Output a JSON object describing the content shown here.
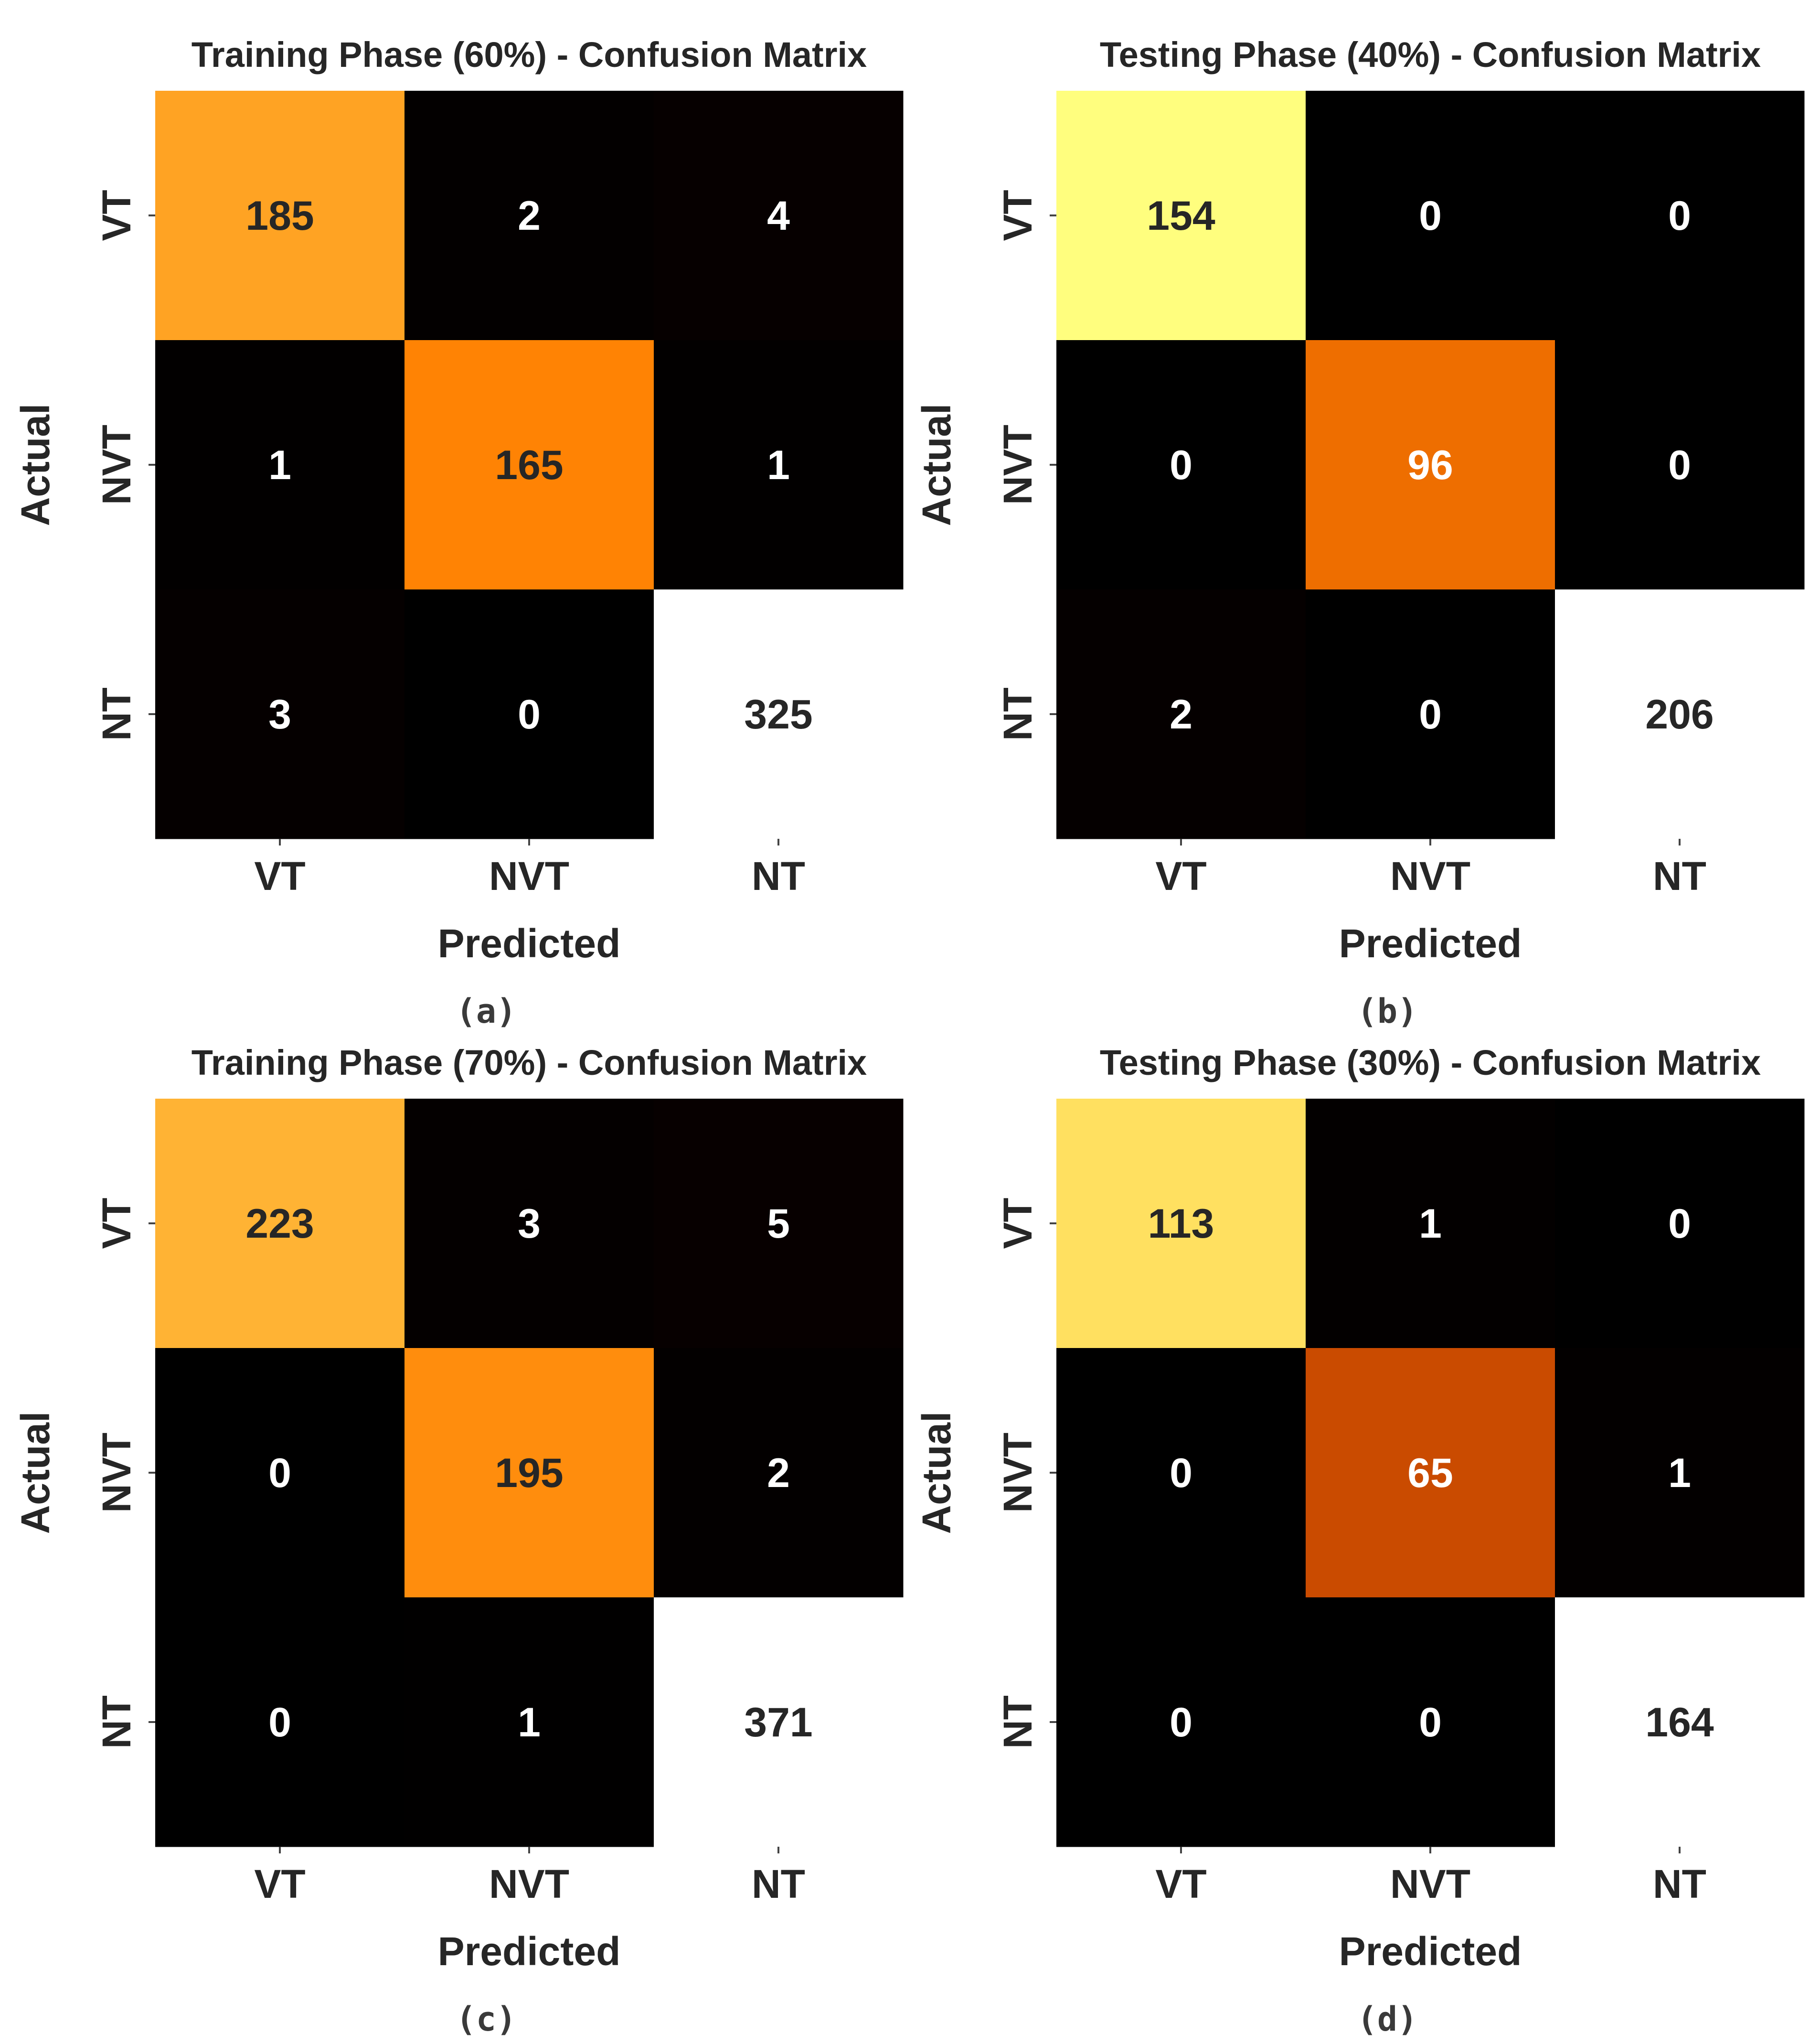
{
  "chart_data": [
    {
      "type": "heatmap",
      "panel": "a",
      "caption": "(a)",
      "title": "Training Phase (60%) - Confusion Matrix",
      "xlabel": "Predicted",
      "ylabel": "Actual",
      "x_categories": [
        "VT",
        "NVT",
        "NT"
      ],
      "y_categories": [
        "VT",
        "NVT",
        "NT"
      ],
      "values": [
        [
          185,
          2,
          4
        ],
        [
          1,
          165,
          1
        ],
        [
          3,
          0,
          325
        ]
      ],
      "colormap": "afmhot",
      "color_max": 325
    },
    {
      "type": "heatmap",
      "panel": "b",
      "caption": "(b)",
      "title": "Testing Phase (40%) - Confusion Matrix",
      "xlabel": "Predicted",
      "ylabel": "Actual",
      "x_categories": [
        "VT",
        "NVT",
        "NT"
      ],
      "y_categories": [
        "VT",
        "NVT",
        "NT"
      ],
      "values": [
        [
          154,
          0,
          0
        ],
        [
          0,
          96,
          0
        ],
        [
          2,
          0,
          206
        ]
      ],
      "colormap": "afmhot",
      "color_max": 206
    },
    {
      "type": "heatmap",
      "panel": "c",
      "caption": "(c)",
      "title": "Training Phase (70%) - Confusion Matrix",
      "xlabel": "Predicted",
      "ylabel": "Actual",
      "x_categories": [
        "VT",
        "NVT",
        "NT"
      ],
      "y_categories": [
        "VT",
        "NVT",
        "NT"
      ],
      "values": [
        [
          223,
          3,
          5
        ],
        [
          0,
          195,
          2
        ],
        [
          0,
          1,
          371
        ]
      ],
      "colormap": "afmhot",
      "color_max": 371
    },
    {
      "type": "heatmap",
      "panel": "d",
      "caption": "(d)",
      "title": "Testing Phase (30%) - Confusion Matrix",
      "xlabel": "Predicted",
      "ylabel": "Actual",
      "x_categories": [
        "VT",
        "NVT",
        "NT"
      ],
      "y_categories": [
        "VT",
        "NVT",
        "NT"
      ],
      "values": [
        [
          113,
          1,
          0
        ],
        [
          0,
          65,
          1
        ],
        [
          0,
          0,
          164
        ]
      ],
      "colormap": "afmhot",
      "color_max": 164
    }
  ],
  "colors": {
    "text_dark": "#262626",
    "text_light": "#ffffff",
    "caption": "#3a3a3a",
    "background": "#ffffff"
  }
}
